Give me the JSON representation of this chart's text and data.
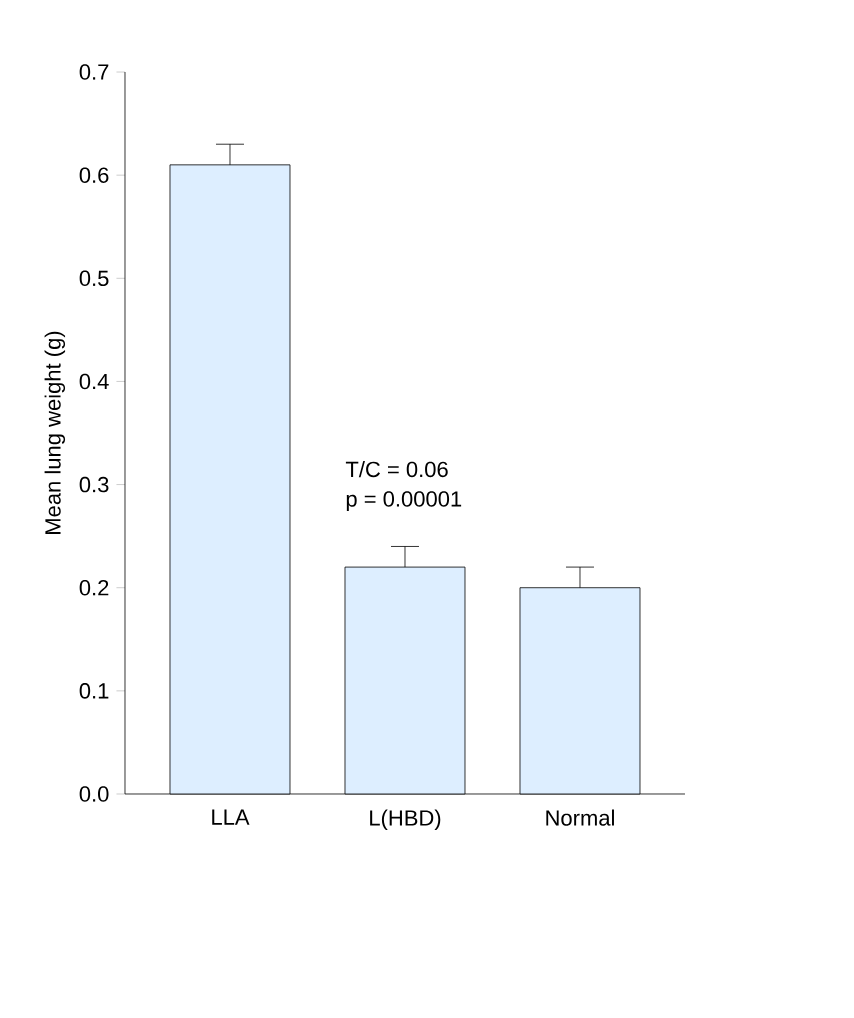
{
  "chart_data": {
    "type": "bar",
    "ylabel": "Mean lung weight (g)",
    "categories": [
      "LLA",
      "L(HBD)",
      "Normal"
    ],
    "values": [
      0.61,
      0.22,
      0.2
    ],
    "errors": [
      [
        0.61,
        0.63
      ],
      [
        0.22,
        0.24
      ],
      [
        0.2,
        0.22
      ]
    ],
    "color": "#ddeeff",
    "ylim": [
      0,
      0.7
    ],
    "yticks": [
      {
        "value": 0,
        "label": "0.0"
      },
      0.1,
      0.2,
      0.3,
      0.4,
      0.5,
      0.6,
      0.7
    ],
    "annotations": [
      "T/C = 0.06",
      "p = 0.00001"
    ]
  }
}
